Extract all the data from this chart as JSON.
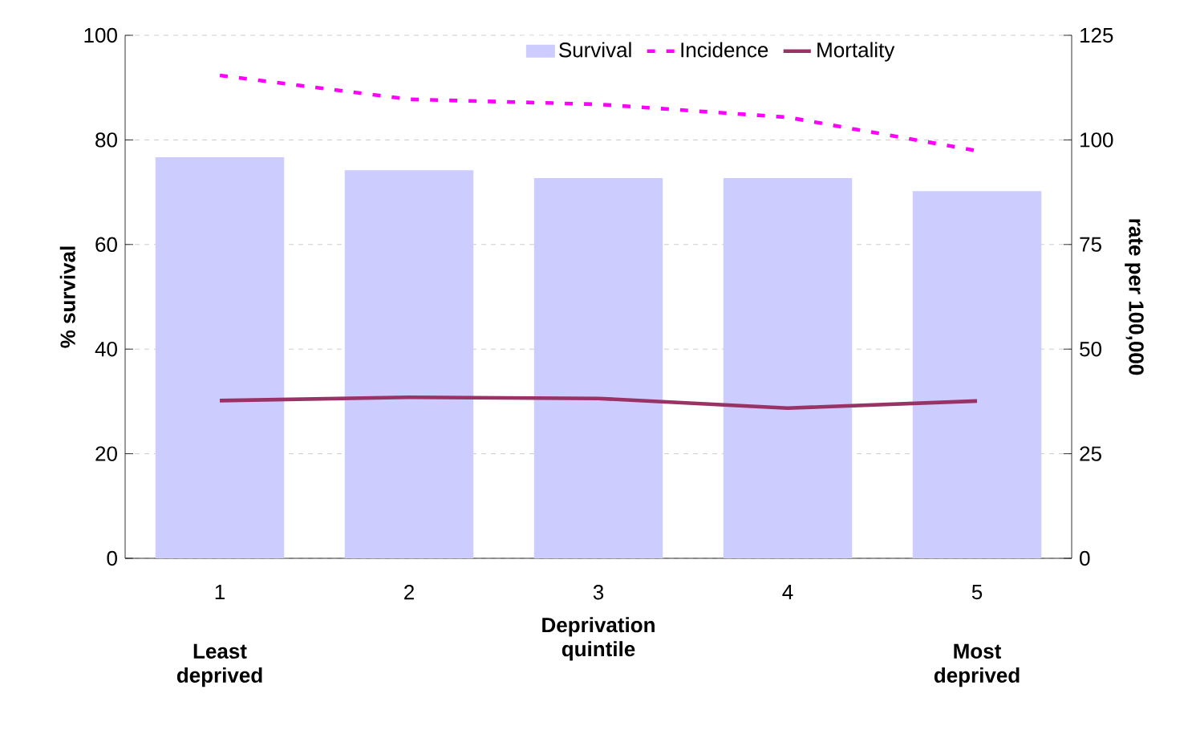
{
  "chart_data": {
    "type": "bar",
    "categories": [
      "1",
      "2",
      "3",
      "4",
      "5"
    ],
    "xlabel": "Deprivation quintile",
    "ylabel": "% survival",
    "y2label": "rate per 100,000",
    "series": [
      {
        "name": "Survival",
        "color": "#ccccff",
        "values": [
          76.7,
          74.2,
          72.7,
          72.7,
          70.2
        ]
      },
      {
        "name": "Incidence",
        "type": "line",
        "axis": "y2",
        "color": "#ff00ff",
        "line_style": "dotted",
        "values": [
          115.4,
          109.7,
          108.5,
          105.4,
          97.4
        ]
      },
      {
        "name": "Mortality",
        "type": "line",
        "axis": "y2",
        "color": "#993366",
        "line_style": "solid",
        "values": [
          37.7,
          38.5,
          38.2,
          35.9,
          37.6
        ]
      }
    ],
    "ylim": [
      0,
      100
    ],
    "yticks": [
      0,
      20,
      40,
      60,
      80,
      100
    ],
    "y2lim": [
      0,
      125
    ],
    "y2ticks": [
      0,
      25,
      50,
      75,
      100,
      125
    ],
    "grid": "y",
    "legend": "top",
    "marker": "none",
    "annotations": [
      "Least deprived",
      "Most deprived"
    ]
  }
}
